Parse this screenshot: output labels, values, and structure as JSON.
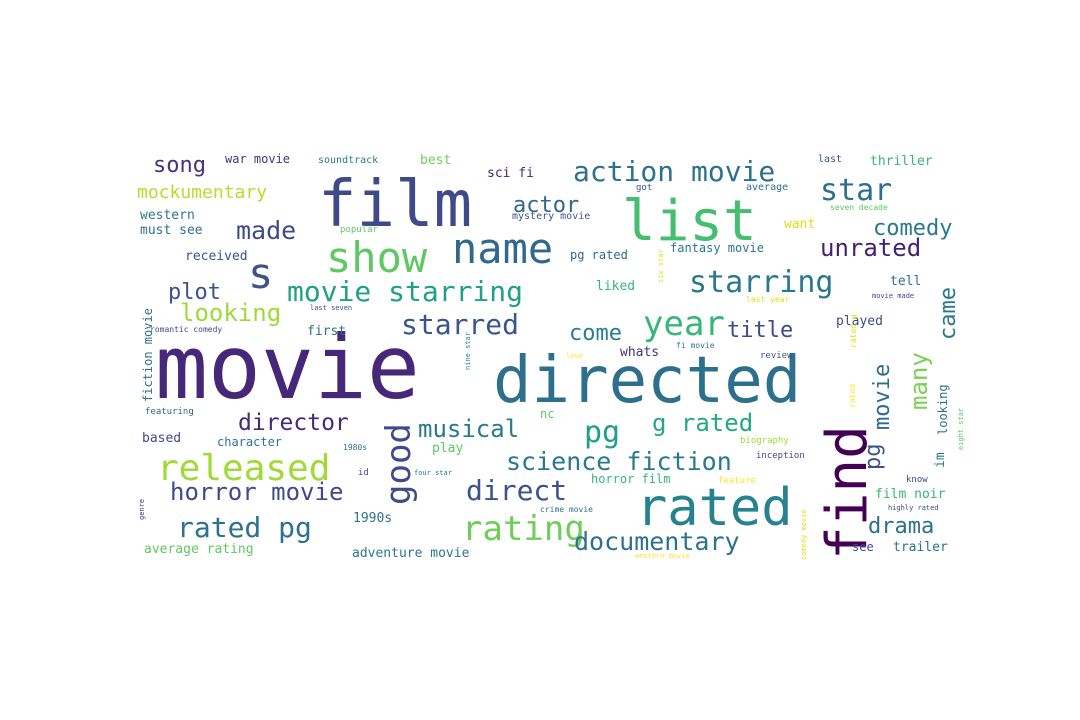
{
  "words": [
    {
      "text": "movie",
      "color": "#472878"
    },
    {
      "text": "directed",
      "color": "#2d708e"
    },
    {
      "text": "film",
      "color": "#3e4a89"
    },
    {
      "text": "list",
      "color": "#44bf70"
    },
    {
      "text": "rated",
      "color": "#26828e"
    },
    {
      "text": "find",
      "color": "#440154"
    },
    {
      "text": "name",
      "color": "#31688e"
    },
    {
      "text": "show",
      "color": "#5ec962"
    },
    {
      "text": "s",
      "color": "#3b528b"
    },
    {
      "text": "released",
      "color": "#a0da39"
    },
    {
      "text": "rating",
      "color": "#6ece58"
    },
    {
      "text": "good",
      "color": "#3e4a89"
    },
    {
      "text": "year",
      "color": "#35b779"
    },
    {
      "text": "pg",
      "color": "#1f9e89"
    },
    {
      "text": "starring",
      "color": "#2a788e"
    },
    {
      "text": "action movie",
      "color": "#2c728e"
    },
    {
      "text": "movie starring",
      "color": "#1fa187"
    },
    {
      "text": "science fiction",
      "color": "#2a788e"
    },
    {
      "text": "rated pg",
      "color": "#2c728e"
    },
    {
      "text": "direct",
      "color": "#3b528b"
    },
    {
      "text": "star",
      "color": "#2d708e"
    },
    {
      "text": "documentary",
      "color": "#2c728e"
    },
    {
      "text": "horror movie",
      "color": "#3e4a89"
    },
    {
      "text": "g rated",
      "color": "#22a884"
    },
    {
      "text": "musical",
      "color": "#2a788e"
    },
    {
      "text": "starred",
      "color": "#39568c"
    },
    {
      "text": "made",
      "color": "#3e4a89"
    },
    {
      "text": "director",
      "color": "#482878"
    },
    {
      "text": "looking",
      "color": "#a0da39"
    },
    {
      "text": "unrated",
      "color": "#481f70"
    },
    {
      "text": "many",
      "color": "#7ad151"
    },
    {
      "text": "comedy",
      "color": "#2a788e"
    },
    {
      "text": "movie",
      "color": "#2f6c8e"
    },
    {
      "text": "pg",
      "color": "#3b528b"
    },
    {
      "text": "title",
      "color": "#3e4a89"
    },
    {
      "text": "plot",
      "color": "#3b528b"
    },
    {
      "text": "came",
      "color": "#2a788e"
    },
    {
      "text": "drama",
      "color": "#2c728e"
    },
    {
      "text": "actor",
      "color": "#31688e"
    },
    {
      "text": "song",
      "color": "#46327e"
    },
    {
      "text": "come",
      "color": "#287d8e"
    },
    {
      "text": "mockumentary",
      "color": "#b5de2b"
    },
    {
      "text": "sci fi",
      "color": "#472878"
    },
    {
      "text": "war movie",
      "color": "#46327e"
    },
    {
      "text": "soundtrack",
      "color": "#2a788e"
    },
    {
      "text": "best",
      "color": "#6ece58"
    },
    {
      "text": "last",
      "color": "#3b528b"
    },
    {
      "text": "thriller",
      "color": "#35b779"
    },
    {
      "text": "average",
      "color": "#2d708e"
    },
    {
      "text": "got",
      "color": "#3b528b"
    },
    {
      "text": "western",
      "color": "#2a788e"
    },
    {
      "text": "mystery movie",
      "color": "#39568c"
    },
    {
      "text": "must see",
      "color": "#2c728e"
    },
    {
      "text": "popular",
      "color": "#5ec962"
    },
    {
      "text": "want",
      "color": "#d8e219"
    },
    {
      "text": "seven decade",
      "color": "#5ec962"
    },
    {
      "text": "received",
      "color": "#3b528b"
    },
    {
      "text": "pg rated",
      "color": "#31688e"
    },
    {
      "text": "fantasy movie",
      "color": "#2a788e"
    },
    {
      "text": "tell",
      "color": "#2d708e"
    },
    {
      "text": "fiction movie",
      "color": "#2c728e"
    },
    {
      "text": "liked",
      "color": "#35b779"
    },
    {
      "text": "six star",
      "color": "#dfe318"
    },
    {
      "text": "last year",
      "color": "#dfe318"
    },
    {
      "text": "movie made",
      "color": "#3e4a89"
    },
    {
      "text": "last seven",
      "color": "#3b528b"
    },
    {
      "text": "first",
      "color": "#2c728e"
    },
    {
      "text": "played",
      "color": "#3e4a89"
    },
    {
      "text": "romantic comedy",
      "color": "#3e4a89"
    },
    {
      "text": "whats",
      "color": "#46327e"
    },
    {
      "text": "fi movie",
      "color": "#2a788e"
    },
    {
      "text": "rated g",
      "color": "#dfe318"
    },
    {
      "text": "nine star",
      "color": "#21918c"
    },
    {
      "text": "love",
      "color": "#fde725"
    },
    {
      "text": "review",
      "color": "#3b528b"
    },
    {
      "text": "im",
      "color": "#2a788e"
    },
    {
      "text": "looking",
      "color": "#2c728e"
    },
    {
      "text": "featuring",
      "color": "#31688e"
    },
    {
      "text": "nc",
      "color": "#5ec962"
    },
    {
      "text": "based",
      "color": "#3e4a89"
    },
    {
      "text": "character",
      "color": "#2a788e"
    },
    {
      "text": "1980s",
      "color": "#2c728e"
    },
    {
      "text": "play",
      "color": "#5ec962"
    },
    {
      "text": "biography",
      "color": "#a0da39"
    },
    {
      "text": "inception",
      "color": "#3e4a89"
    },
    {
      "text": "horror film",
      "color": "#35b779"
    },
    {
      "text": "id",
      "color": "#3b528b"
    },
    {
      "text": "four star",
      "color": "#2a788e"
    },
    {
      "text": "feature",
      "color": "#fde725"
    },
    {
      "text": "rated",
      "color": "#fde725"
    },
    {
      "text": "comedy movie",
      "color": "#dfe318"
    },
    {
      "text": "know",
      "color": "#3e4a89"
    },
    {
      "text": "eight star",
      "color": "#5ec962"
    },
    {
      "text": "genre",
      "color": "#46327e"
    },
    {
      "text": "1990s",
      "color": "#2c728e"
    },
    {
      "text": "film noir",
      "color": "#35b779"
    },
    {
      "text": "highly rated",
      "color": "#3e4a89"
    },
    {
      "text": "crime movie",
      "color": "#2d708e"
    },
    {
      "text": "average rating",
      "color": "#5ec962"
    },
    {
      "text": "adventure movie",
      "color": "#2a788e"
    },
    {
      "text": "see",
      "color": "#3e4a89"
    },
    {
      "text": "trailer",
      "color": "#2c728e"
    },
    {
      "text": "western movie",
      "color": "#fde725"
    }
  ]
}
